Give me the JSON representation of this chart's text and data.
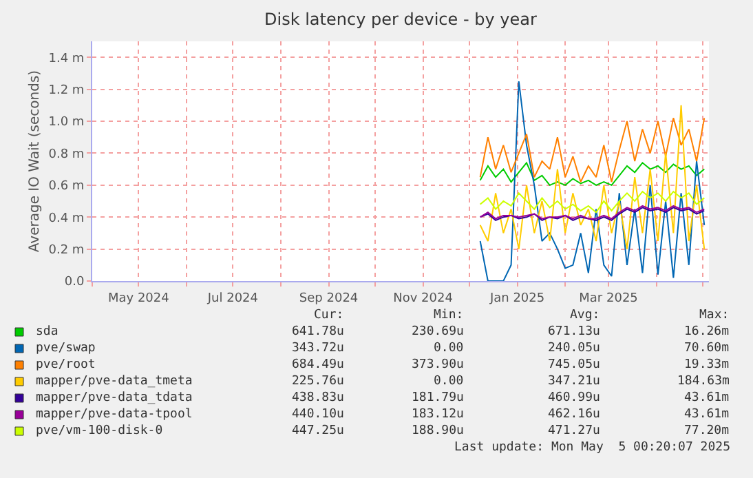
{
  "chart_data": {
    "type": "line",
    "title": "Disk latency per device - by year",
    "ylabel": "Average IO Wait (seconds)",
    "x": [
      "2024-12-08",
      "2024-12-13",
      "2024-12-18",
      "2024-12-23",
      "2024-12-28",
      "2025-01-02",
      "2025-01-07",
      "2025-01-12",
      "2025-01-17",
      "2025-01-22",
      "2025-01-27",
      "2025-02-01",
      "2025-02-06",
      "2025-02-11",
      "2025-02-16",
      "2025-02-21",
      "2025-02-26",
      "2025-03-03",
      "2025-03-08",
      "2025-03-13",
      "2025-03-18",
      "2025-03-23",
      "2025-03-28",
      "2025-04-02",
      "2025-04-07",
      "2025-04-12",
      "2025-04-17",
      "2025-04-22",
      "2025-04-27",
      "2025-05-02"
    ],
    "series": [
      {
        "name": "sda",
        "color": "#00cc00",
        "values": [
          0.63,
          0.72,
          0.65,
          0.7,
          0.62,
          0.68,
          0.74,
          0.63,
          0.66,
          0.6,
          0.62,
          0.6,
          0.64,
          0.61,
          0.63,
          0.6,
          0.62,
          0.6,
          0.66,
          0.72,
          0.68,
          0.74,
          0.7,
          0.72,
          0.68,
          0.73,
          0.7,
          0.72,
          0.66,
          0.7
        ]
      },
      {
        "name": "pve/swap",
        "color": "#0066b3",
        "values": [
          0.25,
          0,
          0,
          0,
          0.1,
          1.25,
          0.85,
          0.6,
          0.25,
          0.3,
          0.2,
          0.08,
          0.1,
          0.3,
          0.05,
          0.45,
          0.1,
          0.03,
          0.55,
          0.1,
          0.45,
          0.05,
          0.6,
          0.04,
          0.5,
          0.02,
          0.55,
          0.1,
          0.75,
          0.35
        ]
      },
      {
        "name": "pve/root",
        "color": "#ff8000",
        "values": [
          0.65,
          0.9,
          0.7,
          0.85,
          0.68,
          0.8,
          0.92,
          0.65,
          0.75,
          0.7,
          0.9,
          0.65,
          0.78,
          0.62,
          0.72,
          0.65,
          0.85,
          0.62,
          0.82,
          1.0,
          0.75,
          0.95,
          0.8,
          1.0,
          0.78,
          1.02,
          0.85,
          0.95,
          0.75,
          1.02
        ]
      },
      {
        "name": "mapper/pve-data_tmeta",
        "color": "#ffcc00",
        "values": [
          0.35,
          0.25,
          0.55,
          0.3,
          0.45,
          0.2,
          0.6,
          0.3,
          0.5,
          0.25,
          0.7,
          0.3,
          0.55,
          0.35,
          0.45,
          0.25,
          0.6,
          0.3,
          0.5,
          0.2,
          0.65,
          0.3,
          0.7,
          0.25,
          0.8,
          0.3,
          1.1,
          0.25,
          0.6,
          0.2
        ]
      },
      {
        "name": "mapper/pve-data_tdata",
        "color": "#330099",
        "values": [
          0.4,
          0.42,
          0.38,
          0.4,
          0.41,
          0.39,
          0.4,
          0.42,
          0.38,
          0.4,
          0.39,
          0.41,
          0.38,
          0.4,
          0.39,
          0.38,
          0.4,
          0.38,
          0.42,
          0.45,
          0.43,
          0.46,
          0.44,
          0.45,
          0.43,
          0.46,
          0.44,
          0.45,
          0.42,
          0.44
        ]
      },
      {
        "name": "mapper/pve-data-tpool",
        "color": "#990099",
        "values": [
          0.4,
          0.43,
          0.39,
          0.41,
          0.41,
          0.4,
          0.41,
          0.42,
          0.39,
          0.4,
          0.4,
          0.41,
          0.39,
          0.41,
          0.39,
          0.39,
          0.41,
          0.39,
          0.43,
          0.46,
          0.44,
          0.47,
          0.45,
          0.46,
          0.44,
          0.47,
          0.45,
          0.46,
          0.43,
          0.45
        ]
      },
      {
        "name": "pve/vm-100-disk-0",
        "color": "#ccff00",
        "values": [
          0.48,
          0.52,
          0.45,
          0.5,
          0.47,
          0.55,
          0.5,
          0.45,
          0.52,
          0.46,
          0.5,
          0.45,
          0.48,
          0.44,
          0.47,
          0.43,
          0.5,
          0.44,
          0.5,
          0.55,
          0.5,
          0.56,
          0.52,
          0.55,
          0.5,
          0.56,
          0.52,
          0.55,
          0.48,
          0.52
        ]
      }
    ],
    "xlim": [
      "2024-04-01",
      "2025-05-05"
    ],
    "xticks": [
      {
        "value": "2024-04-01",
        "label": null
      },
      {
        "value": "2024-05-01",
        "label": "May 2024"
      },
      {
        "value": "2024-06-01",
        "label": null
      },
      {
        "value": "2024-07-01",
        "label": "Jul 2024"
      },
      {
        "value": "2024-08-01",
        "label": null
      },
      {
        "value": "2024-09-01",
        "label": "Sep 2024"
      },
      {
        "value": "2024-10-01",
        "label": null
      },
      {
        "value": "2024-11-01",
        "label": "Nov 2024"
      },
      {
        "value": "2024-12-01",
        "label": null
      },
      {
        "value": "2025-01-01",
        "label": "Jan 2025"
      },
      {
        "value": "2025-02-01",
        "label": null
      },
      {
        "value": "2025-03-01",
        "label": "Mar 2025"
      },
      {
        "value": "2025-04-01",
        "label": null
      },
      {
        "value": "2025-05-01",
        "label": null
      }
    ],
    "ylim": [
      0,
      1.5
    ],
    "yticks": [
      {
        "value": 0,
        "label": "0.0"
      },
      {
        "value": 0.2,
        "label": "0.2 m"
      },
      {
        "value": 0.4,
        "label": "0.4 m"
      },
      {
        "value": 0.6,
        "label": "0.6 m"
      },
      {
        "value": 0.8,
        "label": "0.8 m"
      },
      {
        "value": 1.0,
        "label": "1.0 m"
      },
      {
        "value": 1.2,
        "label": "1.2 m"
      },
      {
        "value": 1.4,
        "label": "1.4 m"
      }
    ],
    "grid": true,
    "legend": "bottom",
    "marker": "none",
    "line_style": "solid",
    "annotations": [
      "Cur:",
      "Min:",
      "Avg:",
      "Max:",
      "641.78u",
      "230.69u",
      "671.13u",
      "16.26m",
      "343.72u",
      "0.00",
      "240.05u",
      "70.60m",
      "684.49u",
      "373.90u",
      "745.05u",
      "19.33m",
      "225.76u",
      "0.00",
      "347.21u",
      "184.63m",
      "438.83u",
      "181.79u",
      "460.99u",
      "43.61m",
      "440.10u",
      "183.12u",
      "462.16u",
      "43.61m",
      "447.25u",
      "188.90u",
      "471.27u",
      "77.20m",
      "Last update: Mon May  5 00:20:07 2025"
    ]
  }
}
